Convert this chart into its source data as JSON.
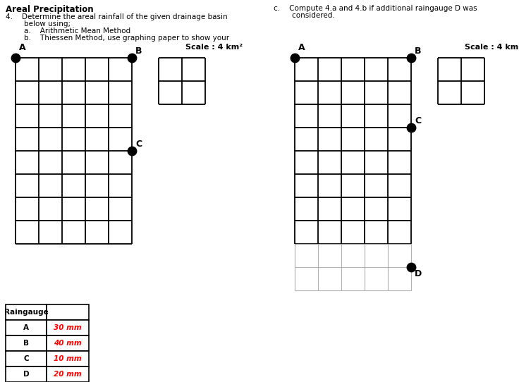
{
  "title": "Areal Precipitation",
  "problem_text_line1": "4.    Determine the areal rainfall of the given drainage basin",
  "problem_text_line2": "        below using;",
  "problem_text_a": "        a.    Arithmetic Mean Method",
  "problem_text_b": "        b.    Thiessen Method, use graphing paper to show your",
  "problem_text_c": "c.    Compute 4.a and 4.b if additional raingauge D was",
  "problem_text_c2": "        considered.",
  "scale_text": "Scale : 4 km²",
  "raingauge_header": "Raingauge",
  "raingauge_labels": [
    "A",
    "B",
    "C",
    "D"
  ],
  "raingauge_values": [
    "30 mm",
    "40 mm",
    "10 mm",
    "20 mm"
  ],
  "text_color": "#000000",
  "red_color": "#FF0000",
  "bg_color": "#ffffff"
}
